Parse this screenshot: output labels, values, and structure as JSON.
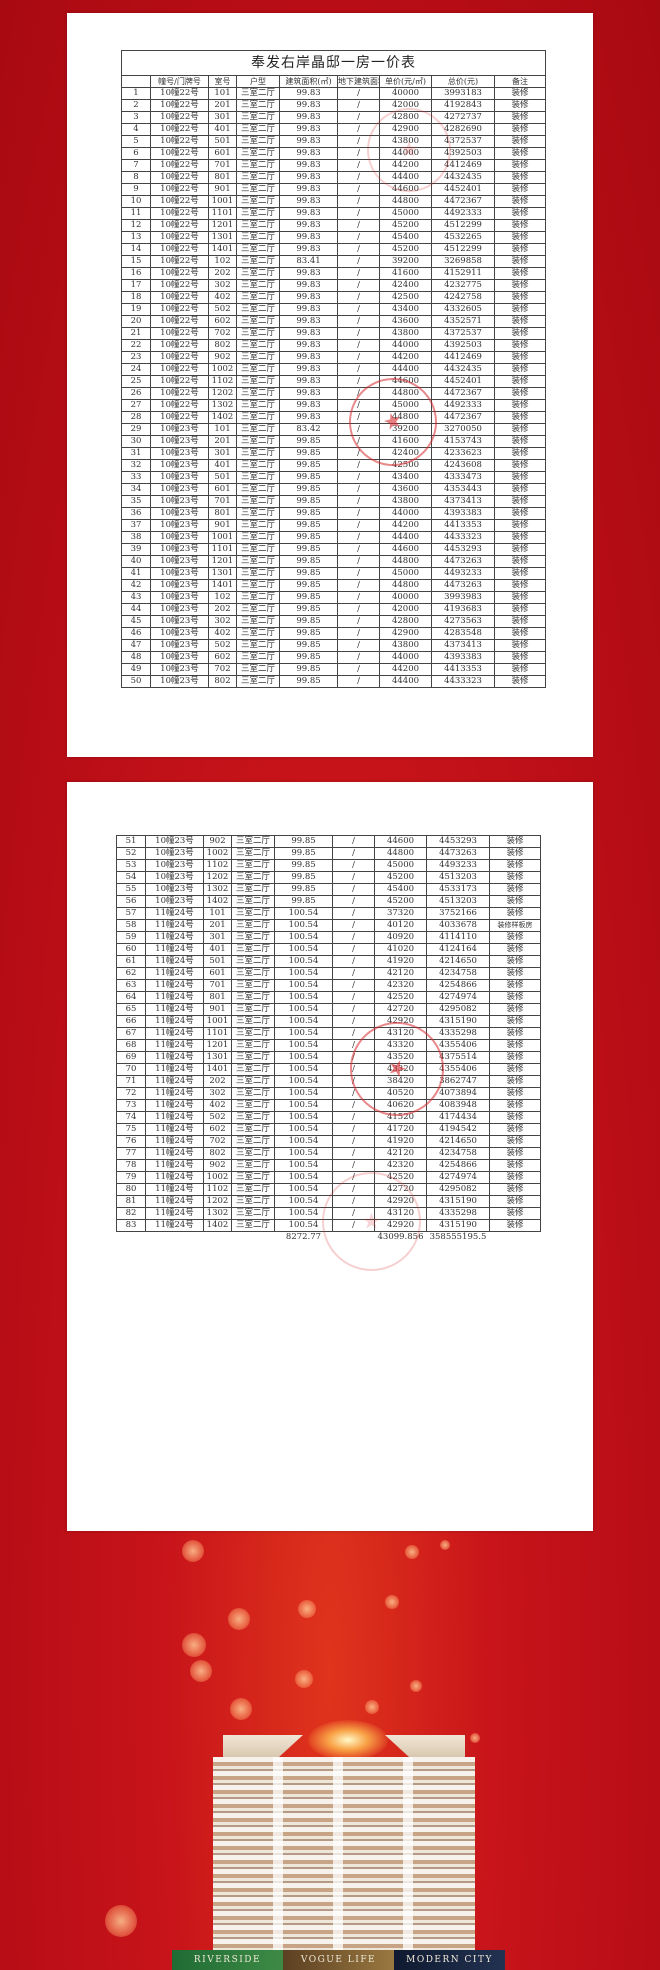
{
  "title": "奉发右岸晶邸一房一价表",
  "headers": [
    "",
    "幢号/门牌号",
    "室号",
    "户型",
    "建筑面积(㎡)",
    "地下建筑面积(㎡)",
    "单价(元/㎡)",
    "总价(元)",
    "备注"
  ],
  "rows": [
    [
      "1",
      "10幢22号",
      "101",
      "三室二厅",
      "99.83",
      "/",
      "40000",
      "3993183",
      "装修"
    ],
    [
      "2",
      "10幢22号",
      "201",
      "三室二厅",
      "99.83",
      "/",
      "42000",
      "4192843",
      "装修"
    ],
    [
      "3",
      "10幢22号",
      "301",
      "三室二厅",
      "99.83",
      "/",
      "42800",
      "4272737",
      "装修"
    ],
    [
      "4",
      "10幢22号",
      "401",
      "三室二厅",
      "99.83",
      "/",
      "42900",
      "4282690",
      "装修"
    ],
    [
      "5",
      "10幢22号",
      "501",
      "三室二厅",
      "99.83",
      "/",
      "43800",
      "4372537",
      "装修"
    ],
    [
      "6",
      "10幢22号",
      "601",
      "三室二厅",
      "99.83",
      "/",
      "44000",
      "4392503",
      "装修"
    ],
    [
      "7",
      "10幢22号",
      "701",
      "三室二厅",
      "99.83",
      "/",
      "44200",
      "4412469",
      "装修"
    ],
    [
      "8",
      "10幢22号",
      "801",
      "三室二厅",
      "99.83",
      "/",
      "44400",
      "4432435",
      "装修"
    ],
    [
      "9",
      "10幢22号",
      "901",
      "三室二厅",
      "99.83",
      "/",
      "44600",
      "4452401",
      "装修"
    ],
    [
      "10",
      "10幢22号",
      "1001",
      "三室二厅",
      "99.83",
      "/",
      "44800",
      "4472367",
      "装修"
    ],
    [
      "11",
      "10幢22号",
      "1101",
      "三室二厅",
      "99.83",
      "/",
      "45000",
      "4492333",
      "装修"
    ],
    [
      "12",
      "10幢22号",
      "1201",
      "三室二厅",
      "99.83",
      "/",
      "45200",
      "4512299",
      "装修"
    ],
    [
      "13",
      "10幢22号",
      "1301",
      "三室二厅",
      "99.83",
      "/",
      "45400",
      "4532265",
      "装修"
    ],
    [
      "14",
      "10幢22号",
      "1401",
      "三室二厅",
      "99.83",
      "/",
      "45200",
      "4512299",
      "装修"
    ],
    [
      "15",
      "10幢22号",
      "102",
      "三室二厅",
      "83.41",
      "/",
      "39200",
      "3269858",
      "装修"
    ],
    [
      "16",
      "10幢22号",
      "202",
      "三室二厅",
      "99.83",
      "/",
      "41600",
      "4152911",
      "装修"
    ],
    [
      "17",
      "10幢22号",
      "302",
      "三室二厅",
      "99.83",
      "/",
      "42400",
      "4232775",
      "装修"
    ],
    [
      "18",
      "10幢22号",
      "402",
      "三室二厅",
      "99.83",
      "/",
      "42500",
      "4242758",
      "装修"
    ],
    [
      "19",
      "10幢22号",
      "502",
      "三室二厅",
      "99.83",
      "/",
      "43400",
      "4332605",
      "装修"
    ],
    [
      "20",
      "10幢22号",
      "602",
      "三室二厅",
      "99.83",
      "/",
      "43600",
      "4352571",
      "装修"
    ],
    [
      "21",
      "10幢22号",
      "702",
      "三室二厅",
      "99.83",
      "/",
      "43800",
      "4372537",
      "装修"
    ],
    [
      "22",
      "10幢22号",
      "802",
      "三室二厅",
      "99.83",
      "/",
      "44000",
      "4392503",
      "装修"
    ],
    [
      "23",
      "10幢22号",
      "902",
      "三室二厅",
      "99.83",
      "/",
      "44200",
      "4412469",
      "装修"
    ],
    [
      "24",
      "10幢22号",
      "1002",
      "三室二厅",
      "99.83",
      "/",
      "44400",
      "4432435",
      "装修"
    ],
    [
      "25",
      "10幢22号",
      "1102",
      "三室二厅",
      "99.83",
      "/",
      "44600",
      "4452401",
      "装修"
    ],
    [
      "26",
      "10幢22号",
      "1202",
      "三室二厅",
      "99.83",
      "/",
      "44800",
      "4472367",
      "装修"
    ],
    [
      "27",
      "10幢22号",
      "1302",
      "三室二厅",
      "99.83",
      "/",
      "45000",
      "4492333",
      "装修"
    ],
    [
      "28",
      "10幢22号",
      "1402",
      "三室二厅",
      "99.83",
      "/",
      "44800",
      "4472367",
      "装修"
    ],
    [
      "29",
      "10幢23号",
      "101",
      "三室二厅",
      "83.42",
      "/",
      "39200",
      "3270050",
      "装修"
    ],
    [
      "30",
      "10幢23号",
      "201",
      "三室二厅",
      "99.85",
      "/",
      "41600",
      "4153743",
      "装修"
    ],
    [
      "31",
      "10幢23号",
      "301",
      "三室二厅",
      "99.85",
      "/",
      "42400",
      "4233623",
      "装修"
    ],
    [
      "32",
      "10幢23号",
      "401",
      "三室二厅",
      "99.85",
      "/",
      "42500",
      "4243608",
      "装修"
    ],
    [
      "33",
      "10幢23号",
      "501",
      "三室二厅",
      "99.85",
      "/",
      "43400",
      "4333473",
      "装修"
    ],
    [
      "34",
      "10幢23号",
      "601",
      "三室二厅",
      "99.85",
      "/",
      "43600",
      "4353443",
      "装修"
    ],
    [
      "35",
      "10幢23号",
      "701",
      "三室二厅",
      "99.85",
      "/",
      "43800",
      "4373413",
      "装修"
    ],
    [
      "36",
      "10幢23号",
      "801",
      "三室二厅",
      "99.85",
      "/",
      "44000",
      "4393383",
      "装修"
    ],
    [
      "37",
      "10幢23号",
      "901",
      "三室二厅",
      "99.85",
      "/",
      "44200",
      "4413353",
      "装修"
    ],
    [
      "38",
      "10幢23号",
      "1001",
      "三室二厅",
      "99.85",
      "/",
      "44400",
      "4433323",
      "装修"
    ],
    [
      "39",
      "10幢23号",
      "1101",
      "三室二厅",
      "99.85",
      "/",
      "44600",
      "4453293",
      "装修"
    ],
    [
      "40",
      "10幢23号",
      "1201",
      "三室二厅",
      "99.85",
      "/",
      "44800",
      "4473263",
      "装修"
    ],
    [
      "41",
      "10幢23号",
      "1301",
      "三室二厅",
      "99.85",
      "/",
      "45000",
      "4493233",
      "装修"
    ],
    [
      "42",
      "10幢23号",
      "1401",
      "三室二厅",
      "99.85",
      "/",
      "44800",
      "4473263",
      "装修"
    ],
    [
      "43",
      "10幢23号",
      "102",
      "三室二厅",
      "99.85",
      "/",
      "40000",
      "3993983",
      "装修"
    ],
    [
      "44",
      "10幢23号",
      "202",
      "三室二厅",
      "99.85",
      "/",
      "42000",
      "4193683",
      "装修"
    ],
    [
      "45",
      "10幢23号",
      "302",
      "三室二厅",
      "99.85",
      "/",
      "42800",
      "4273563",
      "装修"
    ],
    [
      "46",
      "10幢23号",
      "402",
      "三室二厅",
      "99.85",
      "/",
      "42900",
      "4283548",
      "装修"
    ],
    [
      "47",
      "10幢23号",
      "502",
      "三室二厅",
      "99.85",
      "/",
      "43800",
      "4373413",
      "装修"
    ],
    [
      "48",
      "10幢23号",
      "602",
      "三室二厅",
      "99.85",
      "/",
      "44000",
      "4393383",
      "装修"
    ],
    [
      "49",
      "10幢23号",
      "702",
      "三室二厅",
      "99.85",
      "/",
      "44200",
      "4413353",
      "装修"
    ],
    [
      "50",
      "10幢23号",
      "802",
      "三室二厅",
      "99.85",
      "/",
      "44400",
      "4433323",
      "装修"
    ],
    [
      "51",
      "10幢23号",
      "902",
      "三室二厅",
      "99.85",
      "/",
      "44600",
      "4453293",
      "装修"
    ],
    [
      "52",
      "10幢23号",
      "1002",
      "三室二厅",
      "99.85",
      "/",
      "44800",
      "4473263",
      "装修"
    ],
    [
      "53",
      "10幢23号",
      "1102",
      "三室二厅",
      "99.85",
      "/",
      "45000",
      "4493233",
      "装修"
    ],
    [
      "54",
      "10幢23号",
      "1202",
      "三室二厅",
      "99.85",
      "/",
      "45200",
      "4513203",
      "装修"
    ],
    [
      "55",
      "10幢23号",
      "1302",
      "三室二厅",
      "99.85",
      "/",
      "45400",
      "4533173",
      "装修"
    ],
    [
      "56",
      "10幢23号",
      "1402",
      "三室二厅",
      "99.85",
      "/",
      "45200",
      "4513203",
      "装修"
    ],
    [
      "57",
      "11幢24号",
      "101",
      "三室二厅",
      "100.54",
      "/",
      "37320",
      "3752166",
      "装修"
    ],
    [
      "58",
      "11幢24号",
      "201",
      "三室二厅",
      "100.54",
      "/",
      "40120",
      "4033678",
      "装修样板房"
    ],
    [
      "59",
      "11幢24号",
      "301",
      "三室二厅",
      "100.54",
      "/",
      "40920",
      "4114110",
      "装修"
    ],
    [
      "60",
      "11幢24号",
      "401",
      "三室二厅",
      "100.54",
      "/",
      "41020",
      "4124164",
      "装修"
    ],
    [
      "61",
      "11幢24号",
      "501",
      "三室二厅",
      "100.54",
      "/",
      "41920",
      "4214650",
      "装修"
    ],
    [
      "62",
      "11幢24号",
      "601",
      "三室二厅",
      "100.54",
      "/",
      "42120",
      "4234758",
      "装修"
    ],
    [
      "63",
      "11幢24号",
      "701",
      "三室二厅",
      "100.54",
      "/",
      "42320",
      "4254866",
      "装修"
    ],
    [
      "64",
      "11幢24号",
      "801",
      "三室二厅",
      "100.54",
      "/",
      "42520",
      "4274974",
      "装修"
    ],
    [
      "65",
      "11幢24号",
      "901",
      "三室二厅",
      "100.54",
      "/",
      "42720",
      "4295082",
      "装修"
    ],
    [
      "66",
      "11幢24号",
      "1001",
      "三室二厅",
      "100.54",
      "/",
      "42920",
      "4315190",
      "装修"
    ],
    [
      "67",
      "11幢24号",
      "1101",
      "三室二厅",
      "100.54",
      "/",
      "43120",
      "4335298",
      "装修"
    ],
    [
      "68",
      "11幢24号",
      "1201",
      "三室二厅",
      "100.54",
      "/",
      "43320",
      "4355406",
      "装修"
    ],
    [
      "69",
      "11幢24号",
      "1301",
      "三室二厅",
      "100.54",
      "/",
      "43520",
      "4375514",
      "装修"
    ],
    [
      "70",
      "11幢24号",
      "1401",
      "三室二厅",
      "100.54",
      "/",
      "43320",
      "4355406",
      "装修"
    ],
    [
      "71",
      "11幢24号",
      "202",
      "三室二厅",
      "100.54",
      "/",
      "38420",
      "3862747",
      "装修"
    ],
    [
      "72",
      "11幢24号",
      "302",
      "三室二厅",
      "100.54",
      "/",
      "40520",
      "4073894",
      "装修"
    ],
    [
      "73",
      "11幢24号",
      "402",
      "三室二厅",
      "100.54",
      "/",
      "40620",
      "4083948",
      "装修"
    ],
    [
      "74",
      "11幢24号",
      "502",
      "三室二厅",
      "100.54",
      "/",
      "41520",
      "4174434",
      "装修"
    ],
    [
      "75",
      "11幢24号",
      "602",
      "三室二厅",
      "100.54",
      "/",
      "41720",
      "4194542",
      "装修"
    ],
    [
      "76",
      "11幢24号",
      "702",
      "三室二厅",
      "100.54",
      "/",
      "41920",
      "4214650",
      "装修"
    ],
    [
      "77",
      "11幢24号",
      "802",
      "三室二厅",
      "100.54",
      "/",
      "42120",
      "4234758",
      "装修"
    ],
    [
      "78",
      "11幢24号",
      "902",
      "三室二厅",
      "100.54",
      "/",
      "42320",
      "4254866",
      "装修"
    ],
    [
      "79",
      "11幢24号",
      "1002",
      "三室二厅",
      "100.54",
      "/",
      "42520",
      "4274974",
      "装修"
    ],
    [
      "80",
      "11幢24号",
      "1102",
      "三室二厅",
      "100.54",
      "/",
      "42720",
      "4295082",
      "装修"
    ],
    [
      "81",
      "11幢24号",
      "1202",
      "三室二厅",
      "100.54",
      "/",
      "42920",
      "4315190",
      "装修"
    ],
    [
      "82",
      "11幢24号",
      "1302",
      "三室二厅",
      "100.54",
      "/",
      "43120",
      "4335298",
      "装修"
    ],
    [
      "83",
      "11幢24号",
      "1402",
      "三室二厅",
      "100.54",
      "/",
      "42920",
      "4315190",
      "装修"
    ]
  ],
  "totals": {
    "area": "8272.77",
    "avg_unit_price": "43099.856",
    "total_price": "358555195.5"
  },
  "banner": {
    "labels": [
      "RIVERSIDE",
      "VOGUE LIFE",
      "MODERN CITY"
    ],
    "label_colors": [
      "#1f6b34",
      "#7a5a2e",
      "#14203a"
    ]
  },
  "colors": {
    "background": "#c8141a",
    "stamp": "#d7282d"
  }
}
